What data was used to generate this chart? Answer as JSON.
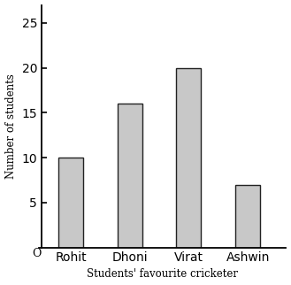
{
  "categories": [
    "Rohit",
    "Dhoni",
    "Virat",
    "Ashwin"
  ],
  "values": [
    10,
    16,
    20,
    7
  ],
  "bar_color": "#c8c8c8",
  "bar_edgecolor": "#222222",
  "xlabel": "Students' favourite cricketer",
  "ylabel": "Number of students",
  "yticks": [
    5,
    10,
    15,
    20,
    25
  ],
  "ylim": [
    0,
    27
  ],
  "origin_label": "O",
  "background_color": "#ffffff",
  "xlabel_fontsize": 8.5,
  "ylabel_fontsize": 8.5,
  "tick_fontsize": 8,
  "bar_width": 0.42
}
